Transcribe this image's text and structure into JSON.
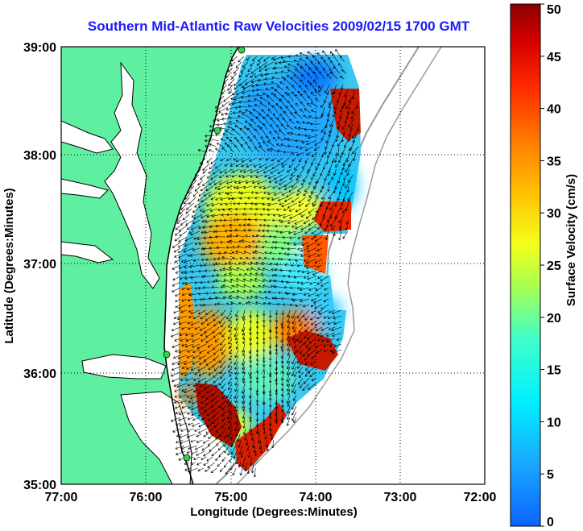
{
  "title": "Southern Mid-Atlantic Raw Velocities 2009/02/15 1700 GMT",
  "x_axis": {
    "label": "Longitude (Degrees:Minutes)",
    "ticks": [
      "77:00",
      "76:00",
      "75:00",
      "74:00",
      "73:00",
      "72:00"
    ]
  },
  "y_axis": {
    "label": "Latitude (Degrees:Minutes)",
    "ticks": [
      "39:00",
      "38:00",
      "37:00",
      "36:00",
      "35:00"
    ]
  },
  "colorbar": {
    "label": "Surface Velocity (cm/s)",
    "ticks": [
      "50",
      "45",
      "40",
      "35",
      "30",
      "25",
      "20",
      "15",
      "10",
      "5",
      "0"
    ],
    "min": 0,
    "max": 50
  },
  "colors": {
    "land": "#5ef0a0",
    "title": "#1a1aff"
  }
}
